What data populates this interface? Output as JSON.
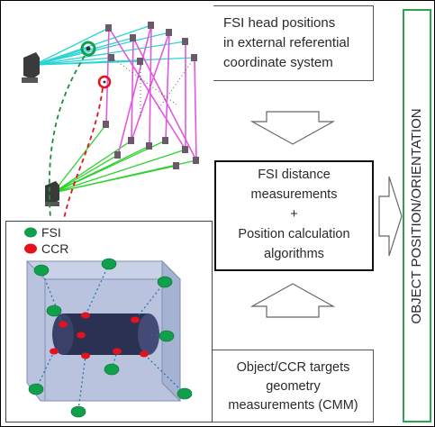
{
  "top_text": {
    "line1": "FSI head positions",
    "line2": "in external referential",
    "line3": "coordinate system"
  },
  "center_text": {
    "line1": "FSI distance",
    "line2": "measurements",
    "line3": "+",
    "line4": "Position calculation",
    "line5": "algorithms"
  },
  "bottom_text": {
    "line1": "Object/CCR targets",
    "line2": "geometry",
    "line3": "measurements (CMM)"
  },
  "side_label": "OBJECT POSITION/ORIENTATION",
  "legend": {
    "fsi_label": "FSI",
    "ccr_label": "CCR",
    "fsi_color": "#0ea04a",
    "ccr_color": "#e3121c"
  },
  "colors": {
    "side_border": "#2aa64a",
    "cyan_beam": "#2ad4d4",
    "magenta_frame": "#e05ae0",
    "green_beam": "#2fd12f",
    "red_path": "#e3121c",
    "green_path": "#1a8f3a"
  }
}
